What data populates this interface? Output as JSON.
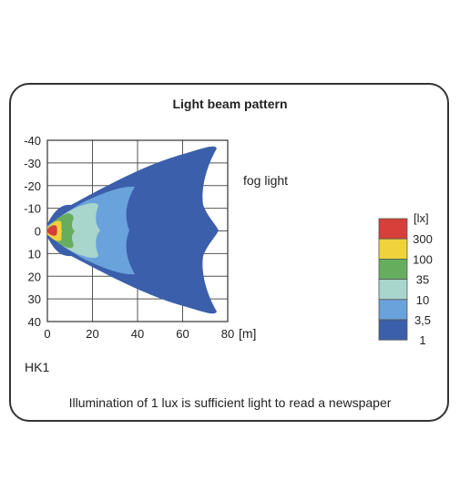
{
  "chart_data": {
    "type": "heatmap",
    "title": "Light beam pattern",
    "series_label": "fog light",
    "model": "HK1",
    "footnote": "Illumination of 1 lux is sufficient light to read a newspaper",
    "x_unit": "[m]",
    "xlim": [
      0,
      80
    ],
    "ylim": [
      -40,
      40
    ],
    "x_ticks": [
      "0",
      "20",
      "40",
      "60",
      "80"
    ],
    "y_ticks": [
      "-40",
      "-30",
      "-20",
      "-10",
      "0",
      "10",
      "20",
      "30",
      "40"
    ],
    "grid": true,
    "legend": {
      "unit": "[lx]",
      "placement": "right",
      "levels": [
        {
          "label": "300",
          "color": "#d63f3a"
        },
        {
          "label": "100",
          "color": "#f0d23c"
        },
        {
          "label": "35",
          "color": "#66ae5e"
        },
        {
          "label": "10",
          "color": "#a8d5cc"
        },
        {
          "label": "3,5",
          "color": "#6aa2dc"
        },
        {
          "label": "1",
          "color": "#3b5faa"
        }
      ],
      "top_color": "#d63f3a"
    },
    "isolux_reach_m": {
      "1": 75,
      "3.5": 40,
      "10": 23,
      "35": 13,
      "100": 8,
      "300": 5
    }
  }
}
